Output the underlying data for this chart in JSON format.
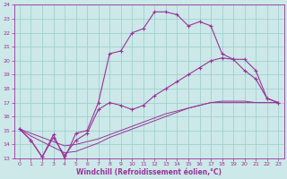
{
  "xlabel": "Windchill (Refroidissement éolien,°C)",
  "bg_color": "#cce8e8",
  "grid_color": "#99cccc",
  "line_color": "#993399",
  "xlim": [
    -0.5,
    23.5
  ],
  "ylim": [
    13,
    24
  ],
  "xticks": [
    0,
    1,
    2,
    3,
    4,
    5,
    6,
    7,
    8,
    9,
    10,
    11,
    12,
    13,
    14,
    15,
    16,
    17,
    18,
    19,
    20,
    21,
    22,
    23
  ],
  "yticks": [
    13,
    14,
    15,
    16,
    17,
    18,
    19,
    20,
    21,
    22,
    23,
    24
  ],
  "line1_x": [
    0,
    1,
    2,
    3,
    4,
    5,
    6,
    7,
    8,
    9,
    10,
    11,
    12,
    13,
    14,
    15,
    16,
    17,
    18,
    19,
    20,
    21,
    22,
    23
  ],
  "line1_y": [
    15.1,
    14.3,
    13.1,
    14.7,
    13.0,
    14.8,
    15.0,
    17.0,
    20.5,
    20.7,
    22.0,
    22.3,
    23.5,
    23.5,
    23.3,
    22.5,
    22.8,
    22.5,
    20.5,
    20.1,
    19.3,
    18.7,
    17.3,
    17.0
  ],
  "line2_x": [
    0,
    1,
    2,
    3,
    4,
    5,
    6,
    7,
    8,
    9,
    10,
    11,
    12,
    13,
    14,
    15,
    16,
    17,
    18,
    19,
    20,
    21,
    22,
    23
  ],
  "line2_y": [
    15.1,
    14.3,
    13.1,
    14.5,
    13.2,
    14.3,
    14.8,
    16.5,
    17.0,
    16.8,
    16.5,
    16.8,
    17.5,
    18.0,
    18.5,
    19.0,
    19.5,
    20.0,
    20.2,
    20.1,
    20.1,
    19.3,
    17.3,
    17.0
  ],
  "line3_x": [
    0,
    1,
    2,
    3,
    4,
    5,
    6,
    7,
    8,
    9,
    10,
    11,
    12,
    13,
    14,
    15,
    16,
    17,
    18,
    19,
    20,
    21,
    22,
    23
  ],
  "line3_y": [
    15.1,
    14.6,
    14.2,
    13.8,
    13.4,
    13.5,
    13.8,
    14.1,
    14.5,
    14.8,
    15.1,
    15.4,
    15.7,
    16.0,
    16.3,
    16.6,
    16.8,
    17.0,
    17.1,
    17.1,
    17.1,
    17.0,
    17.0,
    17.0
  ],
  "line4_x": [
    0,
    1,
    2,
    3,
    4,
    5,
    6,
    7,
    8,
    9,
    10,
    11,
    12,
    13,
    14,
    15,
    16,
    17,
    18,
    19,
    20,
    21,
    22,
    23
  ],
  "line4_y": [
    15.1,
    14.8,
    14.5,
    14.2,
    13.9,
    14.0,
    14.2,
    14.4,
    14.7,
    15.0,
    15.3,
    15.6,
    15.9,
    16.2,
    16.4,
    16.6,
    16.8,
    17.0,
    17.0,
    17.0,
    17.0,
    17.0,
    17.0,
    17.0
  ]
}
